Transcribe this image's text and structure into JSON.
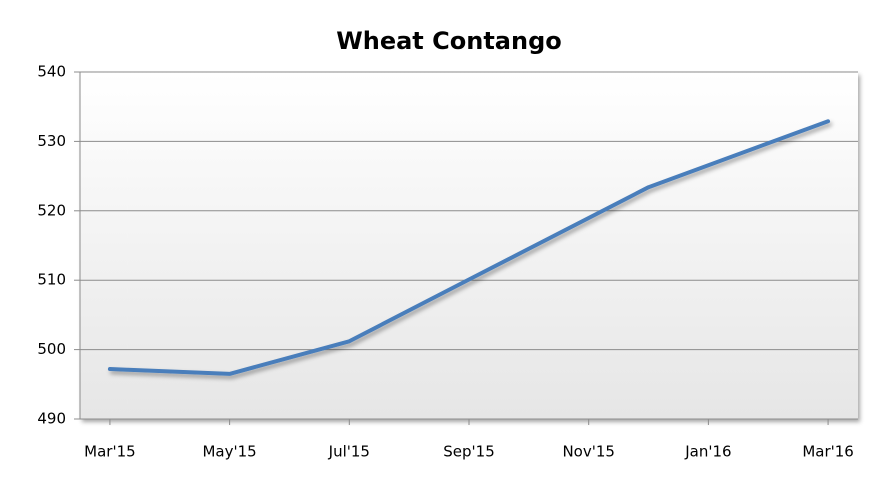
{
  "chart_data": {
    "type": "line",
    "title": "Wheat Contango",
    "x": [
      0,
      2,
      4,
      6,
      9,
      12
    ],
    "series": [
      {
        "name": "Wheat",
        "color": "#4a7ebb",
        "values": [
          497.2,
          496.5,
          501.2,
          510.1,
          523.4,
          532.9
        ]
      }
    ],
    "xlim": [
      -0.5,
      12.5
    ],
    "xticks": [
      {
        "value": 0,
        "label": "Mar'15"
      },
      {
        "value": 2,
        "label": "May'15"
      },
      {
        "value": 4,
        "label": "Jul'15"
      },
      {
        "value": 6,
        "label": "Sep'15"
      },
      {
        "value": 8,
        "label": "Nov'15"
      },
      {
        "value": 10,
        "label": "Jan'16"
      },
      {
        "value": 12,
        "label": "Mar'16"
      }
    ],
    "ylim": [
      490,
      540
    ],
    "yticks": [
      490,
      500,
      510,
      520,
      530,
      540
    ],
    "grid": true
  }
}
